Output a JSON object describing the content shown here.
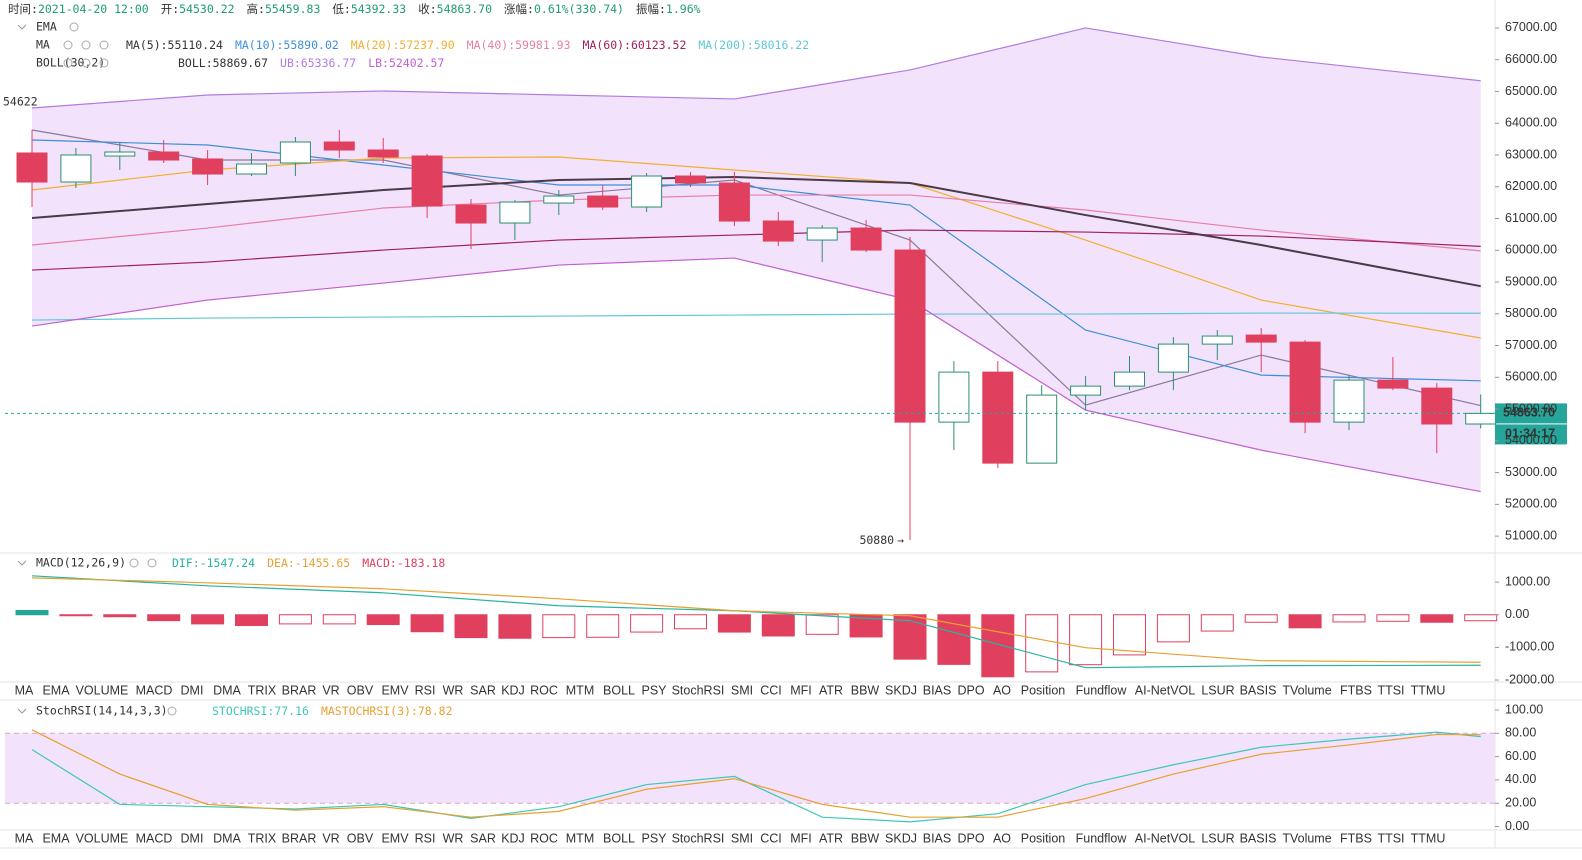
{
  "header": [
    {
      "label": "时间:",
      "value": "2021-04-20 12:00"
    },
    {
      "label": "开:",
      "value": "54530.22"
    },
    {
      "label": "高:",
      "value": "55459.83"
    },
    {
      "label": "低:",
      "value": "54392.33"
    },
    {
      "label": "收:",
      "value": "54863.70"
    },
    {
      "label": "涨幅:",
      "value": "0.61%(330.74)"
    },
    {
      "label": "振幅:",
      "value": "1.96%"
    }
  ],
  "tabs": [
    "MA",
    "EMA",
    "VOLUME",
    "MACD",
    "DMI",
    "DMA",
    "TRIX",
    "BRAR",
    "VR",
    "OBV",
    "EMV",
    "RSI",
    "WR",
    "SAR",
    "KDJ",
    "ROC",
    "MTM",
    "BOLL",
    "PSY",
    "StochRSI",
    "SMI",
    "CCI",
    "MFI",
    "ATR",
    "BBW",
    "SKDJ",
    "BIAS",
    "DPO",
    "AO",
    "Position",
    "Fundflow",
    "AI-NetVOL",
    "LSUR",
    "BASIS",
    "TVolume",
    "FTBS",
    "TTSI",
    "TTMU"
  ],
  "chart_data": [
    {
      "type": "candlestick",
      "ylim": [
        50500,
        67880
      ],
      "yticks": [
        {
          "value": 51000,
          "label": "51000.00"
        },
        {
          "value": 52000,
          "label": "52000.00"
        },
        {
          "value": 53000,
          "label": "53000.00"
        },
        {
          "value": 54000,
          "label": "54000.00"
        },
        {
          "value": 55000,
          "label": "55000.00"
        },
        {
          "value": 56000,
          "label": "56000.00"
        },
        {
          "value": 57000,
          "label": "57000.00"
        },
        {
          "value": 58000,
          "label": "58000.00"
        },
        {
          "value": 59000,
          "label": "59000.00"
        },
        {
          "value": 60000,
          "label": "60000.00"
        },
        {
          "value": 61000,
          "label": "61000.00"
        },
        {
          "value": 62000,
          "label": "62000.00"
        },
        {
          "value": 63000,
          "label": "63000.00"
        },
        {
          "value": 64000,
          "label": "64000.00"
        },
        {
          "value": 65000,
          "label": "65000.00"
        },
        {
          "value": 66000,
          "label": "66000.00"
        },
        {
          "value": 67000,
          "label": "67000.00"
        }
      ],
      "open": [
        63063,
        62149,
        62968,
        63094,
        62874,
        62401,
        62748,
        63409,
        63157,
        62968,
        61424,
        60858,
        61487,
        61708,
        61362,
        62338,
        62118,
        60921,
        60322,
        60700,
        60007,
        54589,
        56164,
        53298,
        55440,
        55723,
        56164,
        57046,
        57330,
        57109,
        54589,
        55912,
        55660,
        54530.22
      ],
      "high": [
        63787,
        63220,
        63409,
        63472,
        63157,
        63063,
        63567,
        63787,
        63535,
        63031,
        61613,
        61582,
        61897,
        62055,
        62433,
        62464,
        62464,
        61204,
        60795,
        60952,
        60416,
        56510,
        56510,
        55755,
        56038,
        56668,
        57268,
        57487,
        57550,
        57172,
        56069,
        56636,
        55818,
        55459.83
      ],
      "low": [
        61362,
        61960,
        62527,
        62748,
        62055,
        62338,
        62338,
        62905,
        62748,
        61015,
        60039,
        60322,
        61109,
        61267,
        61204,
        61991,
        60763,
        60133,
        59629,
        59944,
        50880,
        53707,
        53140,
        53298,
        54967,
        55597,
        55597,
        56542,
        56164,
        54243,
        54337,
        55597,
        53613,
        54392.33
      ],
      "close": [
        62149,
        63000,
        63094,
        62842,
        62401,
        62716,
        63409,
        63157,
        62937,
        61393,
        60858,
        61519,
        61708,
        61362,
        62338,
        62118,
        60921,
        60290,
        60700,
        60007,
        54589,
        56164,
        53298,
        55440,
        55723,
        56164,
        57046,
        57299,
        57109,
        54589,
        55912,
        55660,
        54530,
        54863.7
      ],
      "up_color": "#2a8f70",
      "down_color": "#e0405e",
      "last_close_label": "54863.70",
      "countdown": "01:34:17",
      "low_arrow": "→",
      "side_label": "54622",
      "indicators": [
        {
          "title": "EMA",
          "series": []
        },
        {
          "title": "MA",
          "series": [
            {
              "name": "MA(5):",
              "color": "#8a7a9a",
              "x": [
                0,
                4,
                8,
                12,
                16,
                20,
                24,
                28,
                33
              ],
              "values": [
                63787,
                62842,
                62842,
                61739,
                62212,
                60322,
                55124,
                56700,
                55110.24
              ]
            },
            {
              "name": "MA(10):",
              "color": "#3d8fd9",
              "x": [
                0,
                4,
                8,
                12,
                16,
                20,
                24,
                28,
                33
              ],
              "values": [
                63472,
                63315,
                62685,
                62055,
                62055,
                61424,
                57487,
                56069,
                55890.02
              ]
            },
            {
              "name": "MA(20):",
              "color": "#f0b030",
              "x": [
                0,
                4,
                8,
                12,
                16,
                20,
                24,
                28,
                33
              ],
              "values": [
                61897,
                62527,
                62905,
                62937,
                62527,
                62118,
                60322,
                58432,
                57237.9
              ],
              "value_labels": [
                null,
                null,
                null,
                null,
                null,
                null,
                null,
                null,
                "57237.90"
              ]
            },
            {
              "name": "MA(40):",
              "color": "#e87ea8",
              "x": [
                0,
                4,
                8,
                12,
                16,
                20,
                24,
                28,
                33
              ],
              "values": [
                60165,
                60700,
                61330,
                61582,
                61739,
                61739,
                61267,
                60637,
                59981.93
              ]
            },
            {
              "name": "MA(60):",
              "color": "#a0205e",
              "x": [
                0,
                4,
                8,
                12,
                16,
                20,
                24,
                28,
                33
              ],
              "values": [
                59377,
                59629,
                60007,
                60322,
                60479,
                60637,
                60574,
                60448,
                60123.52
              ]
            },
            {
              "name": "MA(200):",
              "color": "#5fc8d8",
              "x": [
                0,
                4,
                8,
                12,
                16,
                20,
                24,
                28,
                33
              ],
              "values": [
                57802,
                57865,
                57897,
                57928,
                57960,
                57991,
                57991,
                58023,
                58016.22
              ]
            }
          ]
        },
        {
          "title": "BOLL(30,2)",
          "band": true,
          "band_color": "#f3e2fb",
          "series": [
            {
              "name": "BOLL:",
              "color": "#4a3a4a",
              "x": [
                0,
                4,
                8,
                12,
                16,
                20,
                24,
                28,
                33
              ],
              "values": [
                61015,
                61456,
                61897,
                62212,
                62307,
                62118,
                61109,
                60165,
                58869.67
              ]
            },
            {
              "name": "UB:",
              "color": "#b07ce0",
              "x": [
                0,
                4,
                8,
                12,
                16,
                20,
                24,
                28,
                33
              ],
              "values": [
                64480,
                64890,
                65015,
                64890,
                64765,
                65677,
                67000,
                66086,
                65336.77
              ]
            },
            {
              "name": "LB:",
              "color": "#c060d0",
              "x": [
                0,
                4,
                8,
                12,
                16,
                20,
                24,
                28,
                33
              ],
              "values": [
                57613,
                58432,
                58968,
                59535,
                59755,
                58432,
                54967,
                53707,
                52402.57
              ]
            }
          ]
        }
      ]
    },
    {
      "type": "macd",
      "title": "MACD(12,26,9)",
      "ylim": [
        -2060,
        1800
      ],
      "yticks": [
        {
          "value": 1000,
          "label": "1000.00"
        },
        {
          "value": 0,
          "label": "0.00"
        },
        {
          "value": -1000,
          "label": "-1000.00"
        },
        {
          "value": -2000,
          "label": "-2000.00"
        }
      ],
      "histogram": {
        "name": "MACD:",
        "color": "#e0405e",
        "up_color": "#26a69a",
        "values": [
          130,
          -20,
          -60,
          -180,
          -280,
          -330,
          -280,
          -280,
          -300,
          -520,
          -700,
          -720,
          -700,
          -690,
          -530,
          -430,
          -530,
          -650,
          -600,
          -680,
          -1360,
          -1520,
          -1900,
          -1750,
          -1530,
          -1230,
          -830,
          -500,
          -230,
          -400,
          -220,
          -200,
          -230,
          -183.18
        ]
      },
      "series": [
        {
          "name": "DIF:",
          "color": "#26b5a0",
          "x": [
            0,
            4,
            8,
            12,
            16,
            20,
            24,
            28,
            33
          ],
          "values": [
            1193,
            887,
            673,
            275,
            122,
            -183,
            -1621,
            -1560,
            -1547.24
          ]
        },
        {
          "name": "DEA:",
          "color": "#e8a030",
          "x": [
            0,
            4,
            8,
            12,
            16,
            20,
            24,
            28,
            33
          ],
          "values": [
            1131,
            979,
            795,
            489,
            122,
            -31,
            -1009,
            -1407,
            -1455.65
          ]
        }
      ]
    },
    {
      "type": "line",
      "title": "StochRSI(14,14,3,3)",
      "ylim": [
        -3,
        106
      ],
      "yticks": [
        {
          "value": 0,
          "label": "0.00"
        },
        {
          "value": 20,
          "label": "20.00"
        },
        {
          "value": 40,
          "label": "40.00"
        },
        {
          "value": 60,
          "label": "60.00"
        },
        {
          "value": 80,
          "label": "80.00"
        },
        {
          "value": 100,
          "label": "100.00"
        }
      ],
      "band": [
        20,
        80
      ],
      "band_color": "#f3e2fb",
      "series": [
        {
          "name": "STOCHRSI:",
          "color": "#3cc8b8",
          "x": [
            0,
            2,
            4,
            6,
            8,
            10,
            12,
            14,
            16,
            18,
            20,
            22,
            24,
            26,
            28,
            30,
            32,
            33
          ],
          "values": [
            66,
            19,
            17,
            15,
            19,
            7,
            17,
            36,
            43,
            8,
            4,
            11,
            36,
            53,
            68,
            75,
            81,
            77.16
          ]
        },
        {
          "name": "MASTOCHRSI(3):",
          "color": "#e8a030",
          "x": [
            0,
            2,
            4,
            6,
            8,
            10,
            12,
            14,
            16,
            18,
            20,
            22,
            24,
            26,
            28,
            30,
            32,
            33
          ],
          "values": [
            83,
            45,
            19,
            14,
            17,
            8,
            13,
            32,
            41,
            19,
            8,
            8,
            24,
            45,
            62,
            70,
            79,
            78.82
          ]
        }
      ]
    }
  ]
}
